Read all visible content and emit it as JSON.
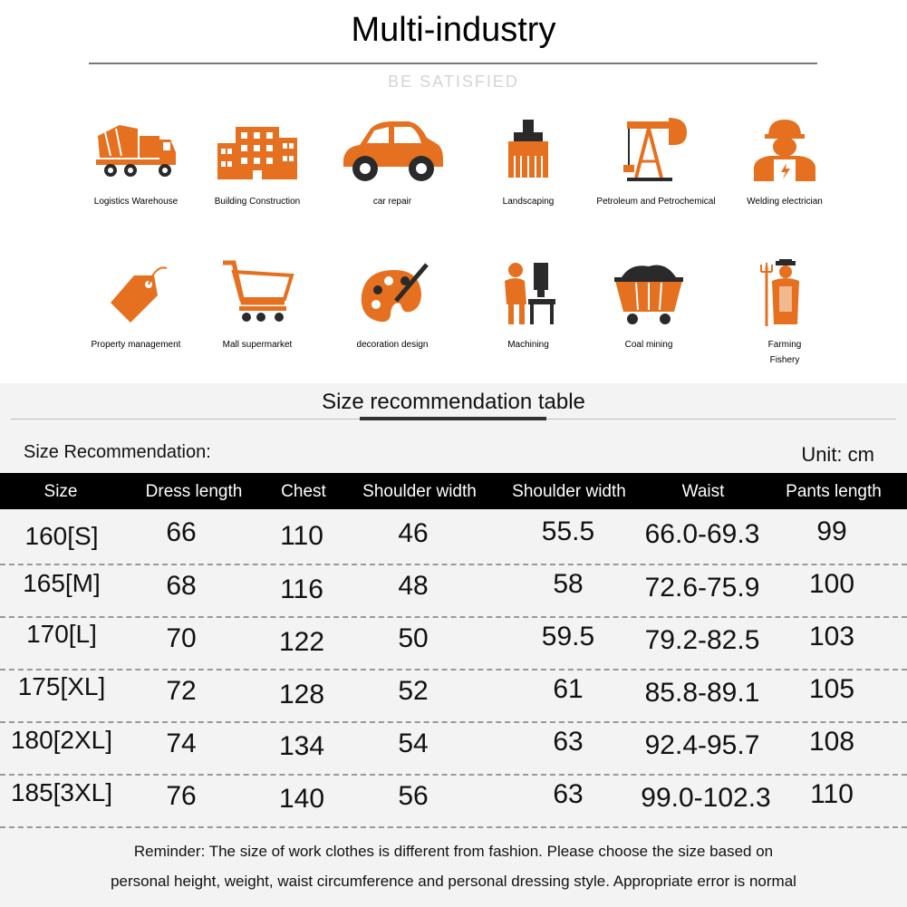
{
  "header": {
    "title": "Multi-industry",
    "subtitle": "BE SATISFIED"
  },
  "colors": {
    "icon_accent": "#e5701f",
    "icon_dark": "#2a2a2a",
    "header_bar": "#000000"
  },
  "industries": [
    {
      "label": "Logistics Warehouse",
      "icon": "cement-truck-icon"
    },
    {
      "label": "Building Construction",
      "icon": "building-icon"
    },
    {
      "label": "car repair",
      "icon": "car-icon"
    },
    {
      "label": "Landscaping",
      "icon": "brush-icon"
    },
    {
      "label": "Petroleum and Petrochemical",
      "icon": "oil-pump-icon"
    },
    {
      "label": "Welding electrician",
      "icon": "electrician-icon"
    },
    {
      "label": "Property management",
      "icon": "price-tag-icon"
    },
    {
      "label": "Mall supermarket",
      "icon": "shopping-cart-icon"
    },
    {
      "label": "decoration design",
      "icon": "paint-palette-icon"
    },
    {
      "label": "Machining",
      "icon": "machinist-icon"
    },
    {
      "label": "Coal mining",
      "icon": "mine-cart-icon"
    },
    {
      "label": "Farming",
      "label2": "Fishery",
      "icon": "farmer-icon"
    }
  ],
  "size_table": {
    "title": "Size recommendation table",
    "label": "Size Recommendation:",
    "unit": "Unit: cm",
    "columns": [
      "Size",
      "Dress length",
      "Chest",
      "Shoulder width",
      "Shoulder width",
      "Waist",
      "Pants length"
    ],
    "rows": [
      [
        "160[S]",
        "66",
        "110",
        "46",
        "55.5",
        "66.0-69.3",
        "99"
      ],
      [
        "165[M]",
        "68",
        "116",
        "48",
        "58",
        "72.6-75.9",
        "100"
      ],
      [
        "170[L]",
        "70",
        "122",
        "50",
        "59.5",
        "79.2-82.5",
        "103"
      ],
      [
        "175[XL]",
        "72",
        "128",
        "52",
        "61",
        "85.8-89.1",
        "105"
      ],
      [
        "180[2XL]",
        "74",
        "134",
        "54",
        "63",
        "92.4-95.7",
        "108"
      ],
      [
        "185[3XL]",
        "76",
        "140",
        "56",
        "63",
        "99.0-102.3",
        "110"
      ]
    ]
  },
  "reminder": {
    "line1": "Reminder: The size of work clothes is different from fashion. Please choose the size based on",
    "line2": "personal height, weight, waist circumference and personal dressing style. Appropriate error is normal"
  }
}
